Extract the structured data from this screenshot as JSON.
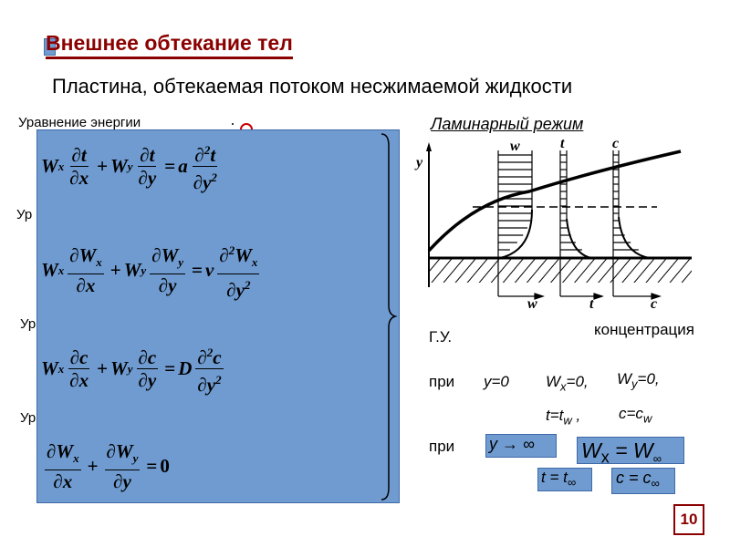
{
  "title": "Внешнее обтекание тел",
  "subtitle": "Пластина, обтекаемая потоком несжимаемой жидкости",
  "side_labels": {
    "energy": "Уравнение энергии",
    "l2": "Ур",
    "l3": "Ур",
    "l4": "Ур"
  },
  "equations": {
    "energy": {
      "a1": "W",
      "a1s": "x",
      "f1n": "∂t",
      "f1d": "∂x",
      "plus": "+",
      "a2": "W",
      "a2s": "y",
      "f2n": "∂t",
      "f2d": "∂y",
      "eq": "=",
      "coef": "a",
      "f3n": "∂",
      "f3ns": "2",
      "f3n2": "t",
      "f3d": "∂y",
      "f3ds": "2"
    },
    "motion": {
      "a1": "W",
      "a1s": "x",
      "f1n": "∂W",
      "f1ns": "x",
      "f1d": "∂x",
      "plus": "+",
      "a2": "W",
      "a2s": "y",
      "f2n": "∂W",
      "f2ns": "y",
      "f2d": "∂y",
      "eq": "=",
      "coef": "ν",
      "f3n": "∂",
      "f3ns": "2",
      "f3n2": "W",
      "f3n2s": "x",
      "f3d": "∂y",
      "f3ds": "2"
    },
    "diffusion": {
      "a1": "W",
      "a1s": "x",
      "f1n": "∂c",
      "f1d": "∂x",
      "plus": "+",
      "a2": "W",
      "a2s": "y",
      "f2n": "∂c",
      "f2d": "∂y",
      "eq": "=",
      "coef": "D",
      "f3n": "∂",
      "f3ns": "2",
      "f3n2": "c",
      "f3d": "∂y",
      "f3ds": "2"
    },
    "continuity": {
      "f1n": "∂W",
      "f1ns": "x",
      "f1d": "∂x",
      "plus": "+",
      "f2n": "∂W",
      "f2ns": "y",
      "f2d": "∂y",
      "eq": "=",
      "rhs": "0"
    }
  },
  "diagram": {
    "title": "Ламинарный режим",
    "labels": {
      "y": "y",
      "w_top": "w",
      "t_top": "t",
      "c_top": "c",
      "w_axis": "w",
      "t_axis": "t",
      "c_axis": "c"
    }
  },
  "concentration_label": "концентрация",
  "boundary": {
    "heading": "Г.У.",
    "pri1": "при",
    "y0": "y=0",
    "wx0": "W",
    "wx0s": "x",
    "wx0r": "=0,",
    "wy0": "W",
    "wy0s": "y",
    "wy0r": "=0,",
    "tw": "t=t",
    "tws": "w",
    "twr": " ,",
    "cw": "c=c",
    "cws": "w",
    "pri2": "при",
    "yinf": "y → ∞",
    "wxinf": "W",
    "wxinfs": "x",
    "wxinfr": " = W",
    "wxinfrs": "∞",
    "tinf": "t = t",
    "tinfs": "∞",
    "cinf": "c = c",
    "cinfs": "∞"
  },
  "page_number": "10",
  "colors": {
    "title": "#8b0000",
    "box": "#6f9bd0"
  }
}
